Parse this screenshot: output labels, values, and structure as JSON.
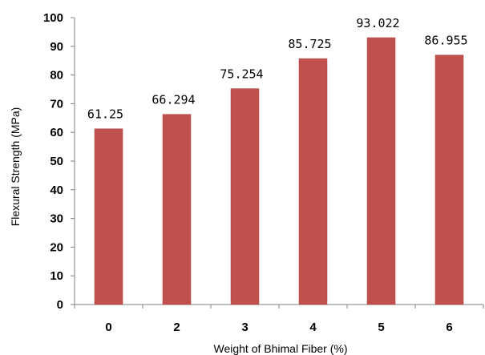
{
  "chart_data": {
    "type": "bar",
    "title": "",
    "xlabel": "Weight of Bhimal Fiber (%)",
    "ylabel": "Flexural Strength (MPa)",
    "categories": [
      "0",
      "2",
      "3",
      "4",
      "5",
      "6"
    ],
    "values": [
      61.25,
      66.294,
      75.254,
      85.725,
      93.022,
      86.955
    ],
    "value_labels": [
      "61.25",
      "66.294",
      "75.254",
      "85.725",
      "93.022",
      "86.955"
    ],
    "ylim": [
      0,
      100
    ],
    "yticks": [
      "0",
      "10",
      "20",
      "30",
      "40",
      "50",
      "60",
      "70",
      "80",
      "90",
      "100"
    ],
    "grid": false,
    "legend": "none",
    "colors": {
      "bar": "#c0504d",
      "bar_stroke": "#a94441",
      "axis": "#808080"
    }
  }
}
